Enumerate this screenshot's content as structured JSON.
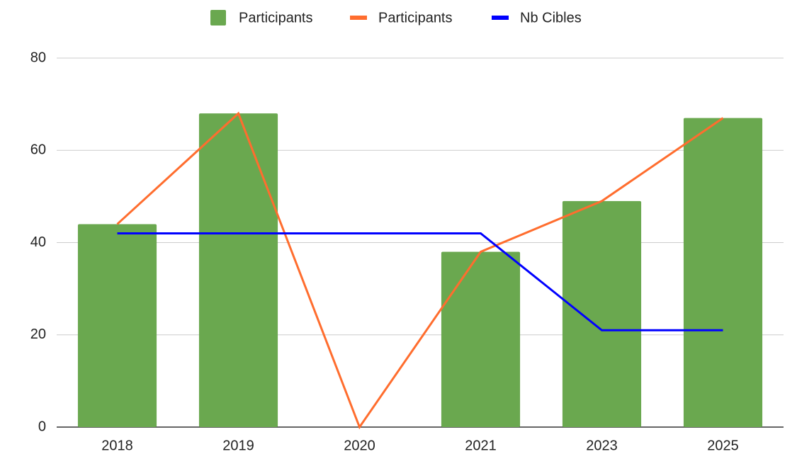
{
  "chart_data": {
    "type": "combo",
    "categories": [
      "2018",
      "2019",
      "2020",
      "2021",
      "2023",
      "2025"
    ],
    "series": [
      {
        "name": "Participants",
        "type": "bar",
        "color": "#6aa84f",
        "values": [
          44,
          68,
          0,
          38,
          49,
          67
        ]
      },
      {
        "name": "Participants",
        "type": "line",
        "color": "#ff6d2e",
        "values": [
          44,
          68,
          0,
          38,
          49,
          67
        ]
      },
      {
        "name": "Nb Cibles",
        "type": "line",
        "color": "#0000ff",
        "values": [
          42,
          42,
          42,
          42,
          21,
          21
        ]
      }
    ],
    "ylim": [
      0,
      80
    ],
    "yticks": [
      0,
      20,
      40,
      60,
      80
    ],
    "grid": true,
    "legend": "top"
  }
}
